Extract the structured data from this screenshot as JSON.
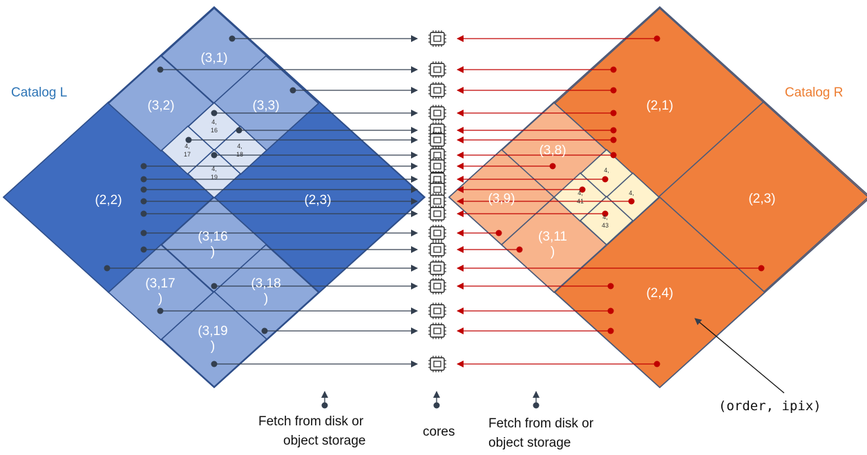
{
  "catalog_left": {
    "title": "Catalog L",
    "colors": {
      "order2": "#3f6cbf",
      "order3": "#8ea9db",
      "order4": "#dae3f3",
      "stroke": "#2f4f8a",
      "dot": "#333f4f"
    },
    "cells": [
      {
        "lines": [
          "(2,2)"
        ]
      },
      {
        "lines": [
          "(2,3)"
        ]
      },
      {
        "lines": [
          "(3,1)"
        ]
      },
      {
        "lines": [
          "(3,2)"
        ]
      },
      {
        "lines": [
          "(3,3)"
        ]
      },
      {
        "lines": [
          "(3,16",
          ")"
        ]
      },
      {
        "lines": [
          "(3,17",
          ")"
        ]
      },
      {
        "lines": [
          "(3,18",
          ")"
        ]
      },
      {
        "lines": [
          "(3,19",
          ")"
        ]
      },
      {
        "lines": [
          "4,",
          "16"
        ]
      },
      {
        "lines": [
          "4,",
          "17"
        ]
      },
      {
        "lines": [
          "4,",
          "18"
        ]
      },
      {
        "lines": [
          "4,",
          "19"
        ]
      }
    ]
  },
  "catalog_right": {
    "title": "Catalog R",
    "colors": {
      "order2": "#f07f3c",
      "order3": "#f8b48c",
      "order4": "#fff2cc",
      "stroke": "#4a5a7a",
      "dot": "#c00000"
    },
    "cells": [
      {
        "lines": [
          "(2,1)"
        ]
      },
      {
        "lines": [
          "(2,3)"
        ]
      },
      {
        "lines": [
          "(2,4)"
        ]
      },
      {
        "lines": [
          "(3,8)"
        ]
      },
      {
        "lines": [
          "(3,9)"
        ]
      },
      {
        "lines": [
          "(3,11",
          ")"
        ]
      },
      {
        "lines": [
          "4,"
        ]
      },
      {
        "lines": [
          "4,",
          "41"
        ]
      },
      {
        "lines": [
          "4,"
        ]
      },
      {
        "lines": [
          "4,",
          "43"
        ]
      }
    ]
  },
  "cores": {
    "count": 21,
    "label": "cores"
  },
  "captions": {
    "left": [
      "Fetch from disk or",
      "object storage"
    ],
    "right": [
      "Fetch from disk or",
      "object storage"
    ],
    "annotation": "(order, ipix)"
  }
}
